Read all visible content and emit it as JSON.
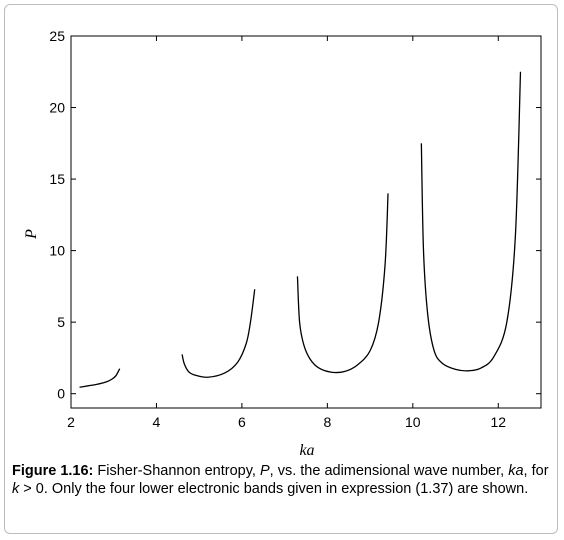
{
  "chart_data": {
    "type": "line",
    "xlabel": "ka",
    "ylabel": "P",
    "xlim": [
      2,
      13
    ],
    "ylim": [
      -1,
      25
    ],
    "x_ticks": [
      2,
      4,
      6,
      8,
      10,
      12
    ],
    "y_ticks": [
      0,
      5,
      10,
      15,
      20,
      25
    ],
    "x_tick_labels": [
      "2",
      "4",
      "6",
      "8",
      "10",
      "12"
    ],
    "y_tick_labels": [
      "0",
      "5",
      "10",
      "15",
      "20",
      "25"
    ],
    "grid": false,
    "series": [
      {
        "x": [
          2.2,
          2.4,
          2.6,
          2.8,
          2.95,
          3.05,
          3.14
        ],
        "y": [
          0.45,
          0.55,
          0.65,
          0.8,
          1.0,
          1.25,
          1.75
        ]
      },
      {
        "x": [
          4.6,
          4.65,
          4.75,
          4.9,
          5.2,
          5.6,
          5.9,
          6.1,
          6.2,
          6.3
        ],
        "y": [
          2.75,
          2.1,
          1.55,
          1.3,
          1.15,
          1.45,
          2.2,
          3.5,
          5.0,
          7.3
        ]
      },
      {
        "x": [
          7.3,
          7.35,
          7.45,
          7.6,
          7.8,
          8.1,
          8.4,
          8.7,
          9.0,
          9.2,
          9.35,
          9.42
        ],
        "y": [
          8.2,
          5.0,
          3.4,
          2.4,
          1.8,
          1.5,
          1.55,
          2.0,
          3.0,
          5.0,
          9.0,
          14.0
        ]
      },
      {
        "x": [
          10.2,
          10.25,
          10.35,
          10.5,
          10.7,
          11.0,
          11.3,
          11.6,
          11.9,
          12.2,
          12.4,
          12.52
        ],
        "y": [
          17.5,
          10.0,
          5.5,
          3.0,
          2.1,
          1.7,
          1.6,
          1.8,
          2.6,
          5.0,
          11.0,
          22.5
        ]
      }
    ]
  },
  "caption": {
    "label": "Figure 1.16:",
    "text_1": " Fisher-Shannon entropy, ",
    "var_P": "P",
    "text_2": ", vs. the adimensional wave number, ",
    "var_ka": "ka",
    "text_3": ", for ",
    "var_k": "k",
    "text_4": " > 0. Only the four lower electronic bands given in expression (1.37) are shown."
  }
}
